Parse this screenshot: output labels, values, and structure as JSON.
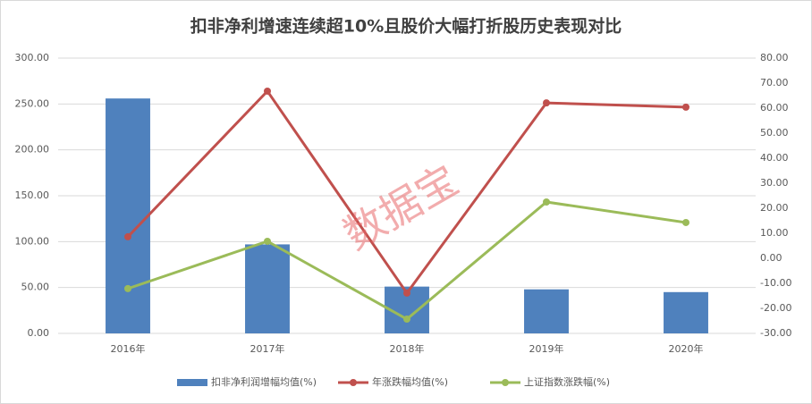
{
  "chart_data": {
    "type": "bar",
    "title": "扣非净利增速连续超10%且股价大幅打折股历史表现对比",
    "watermark": "数据宝",
    "categories": [
      "2016年",
      "2017年",
      "2018年",
      "2019年",
      "2020年"
    ],
    "series": [
      {
        "name": "扣非净利润增幅均值(%)",
        "type": "bar",
        "color": "#4f81bd",
        "values": [
          256,
          97,
          51,
          48,
          45
        ]
      },
      {
        "name": "年涨跌幅均值(%)",
        "type": "line",
        "axis": "y2",
        "color": "#c0504d",
        "values": [
          8.6,
          66.8,
          -13.9,
          62.1,
          60.4
        ]
      },
      {
        "name": "上证指数涨跌幅(%)",
        "type": "line",
        "axis": "y2",
        "color": "#9bbb59",
        "values": [
          -12.1,
          6.8,
          -24.3,
          22.5,
          14.3
        ]
      }
    ],
    "ylim": [
      0,
      300
    ],
    "yticks": [
      {
        "value": 0,
        "label": "0.00"
      },
      {
        "value": 50,
        "label": "50.00"
      },
      {
        "value": 100,
        "label": "100.00"
      },
      {
        "value": 150,
        "label": "150.00"
      },
      {
        "value": 200,
        "label": "200.00"
      },
      {
        "value": 250,
        "label": "250.00"
      },
      {
        "value": 300,
        "label": "300.00"
      }
    ],
    "y2lim": [
      -30,
      80
    ],
    "y2ticks": [
      {
        "value": -30,
        "label": "-30.00"
      },
      {
        "value": -20,
        "label": "-20.00"
      },
      {
        "value": -10,
        "label": "-10.00"
      },
      {
        "value": 0,
        "label": "0.00"
      },
      {
        "value": 10,
        "label": "10.00"
      },
      {
        "value": 20,
        "label": "20.00"
      },
      {
        "value": 30,
        "label": "30.00"
      },
      {
        "value": 40,
        "label": "40.00"
      },
      {
        "value": 50,
        "label": "50.00"
      },
      {
        "value": 60,
        "label": "60.00"
      },
      {
        "value": 70,
        "label": "70.00"
      },
      {
        "value": 80,
        "label": "80.00"
      }
    ],
    "grid": true,
    "legend": "bottom"
  }
}
